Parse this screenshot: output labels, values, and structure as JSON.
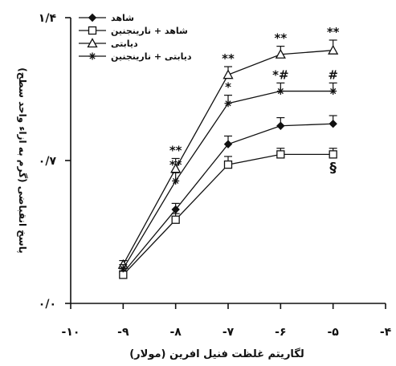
{
  "chart_data": {
    "type": "line",
    "title": "",
    "xlabel": "لگاریتم غلظت فنیل افرین (مولار)",
    "ylabel": "پاسخ انقباضی (گرم به ازاء واحد سطح)",
    "xlim": [
      -10,
      -4
    ],
    "ylim": [
      0,
      1.4
    ],
    "x_ticks": [
      -10,
      -9,
      -8,
      -7,
      -6,
      -5,
      -4
    ],
    "x_tick_labels": [
      "-۱۰",
      "-۹",
      "-۸",
      "-۷",
      "-۶",
      "-۵",
      "-۴"
    ],
    "y_ticks": [
      0,
      0.7,
      1.4
    ],
    "y_tick_labels": [
      "۰/۰",
      "۰/۷",
      "۱/۴"
    ],
    "grid": false,
    "legend_position": "top-left",
    "series": [
      {
        "name": "شاهد",
        "marker": "filled-diamond",
        "x": [
          -9,
          -8,
          -7,
          -6,
          -5
        ],
        "y": [
          0.15,
          0.46,
          0.78,
          0.87,
          0.88
        ],
        "err": [
          0.02,
          0.03,
          0.04,
          0.04,
          0.04
        ],
        "annotations": []
      },
      {
        "name": "شاهد + نارینجنین",
        "marker": "open-square",
        "x": [
          -9,
          -8,
          -7,
          -6,
          -5
        ],
        "y": [
          0.14,
          0.41,
          0.68,
          0.73,
          0.73
        ],
        "err": [
          0.02,
          0.03,
          0.04,
          0.03,
          0.03
        ],
        "annotations": [
          {
            "x": -5,
            "text": "§"
          }
        ]
      },
      {
        "name": "دیابتی",
        "marker": "open-triangle",
        "x": [
          -9,
          -8,
          -7,
          -6,
          -5
        ],
        "y": [
          0.19,
          0.66,
          1.12,
          1.22,
          1.24
        ],
        "err": [
          0.02,
          0.05,
          0.04,
          0.04,
          0.05
        ],
        "annotations": [
          {
            "x": -8,
            "text": "**"
          },
          {
            "x": -7,
            "text": "**"
          },
          {
            "x": -6,
            "text": "**"
          },
          {
            "x": -5,
            "text": "**"
          }
        ]
      },
      {
        "name": "دیابتی + نارینجنین",
        "marker": "star",
        "x": [
          -9,
          -8,
          -7,
          -6,
          -5
        ],
        "y": [
          0.17,
          0.6,
          0.98,
          1.04,
          1.04
        ],
        "err": [
          0.02,
          0.04,
          0.04,
          0.04,
          0.04
        ],
        "annotations": [
          {
            "x": -8,
            "text": "**"
          },
          {
            "x": -7,
            "text": "*"
          },
          {
            "x": -6,
            "text": "*#"
          },
          {
            "x": -5,
            "text": "#"
          }
        ]
      }
    ]
  }
}
